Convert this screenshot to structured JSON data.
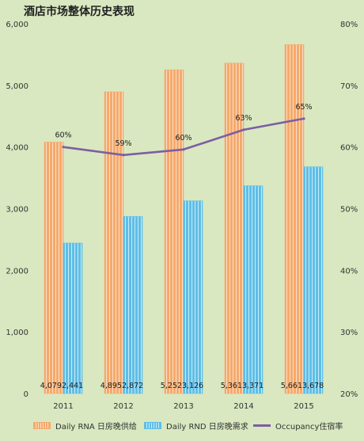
{
  "chart_data": {
    "type": "bar",
    "title": "酒店市场整体历史表现",
    "categories": [
      "2011",
      "2012",
      "2013",
      "2014",
      "2015"
    ],
    "series": [
      {
        "name": "Daily RNA 日房晚供给",
        "type": "bar",
        "axis": "left",
        "values": [
          4079,
          4895,
          5252,
          5361,
          5661
        ],
        "labels": [
          "4,079",
          "4,895",
          "5,252",
          "5,361",
          "5,661"
        ]
      },
      {
        "name": "Daily RND 日房晚需求",
        "type": "bar",
        "axis": "left",
        "values": [
          2441,
          2872,
          3126,
          3371,
          3678
        ],
        "labels": [
          "2,441",
          "2,872",
          "3,126",
          "3,371",
          "3,678"
        ]
      },
      {
        "name": "Occupancy住宿率",
        "type": "line",
        "axis": "right",
        "values": [
          0.6,
          0.587,
          0.596,
          0.628,
          0.646
        ],
        "labels": [
          "60%",
          "59%",
          "60%",
          "63%",
          "65%"
        ]
      }
    ],
    "y_left": {
      "range": [
        0,
        6000
      ],
      "ticks": [
        "0",
        "1,000",
        "2,000",
        "3,000",
        "4,000",
        "5,000",
        "6,000"
      ]
    },
    "y_right": {
      "range": [
        0.2,
        0.8
      ],
      "ticks": [
        "20%",
        "30%",
        "40%",
        "50%",
        "60%",
        "70%",
        "80%"
      ]
    },
    "grid": false,
    "legend_position": "bottom"
  },
  "colors": {
    "supply_bar": "#f5a96b",
    "supply_stripe": "#fbe0c8",
    "demand_bar": "#5ebee6",
    "demand_stripe": "#c9ecf8",
    "occupancy_line": "#7b5fa3",
    "background": "#d9e8c0"
  }
}
